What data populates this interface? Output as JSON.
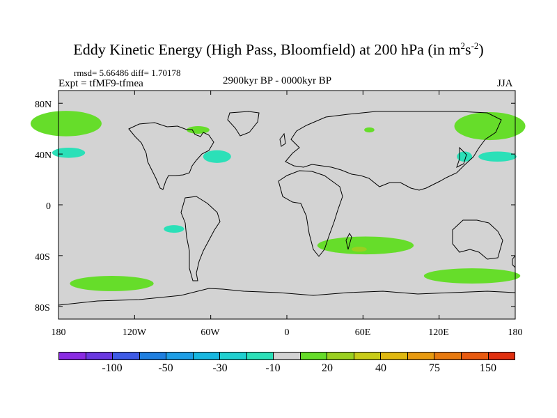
{
  "title": {
    "main": "Eddy Kinetic Energy (High Pass, Bloomfield) at 200 hPa (in m",
    "sup1": "2",
    "mid": "s",
    "sup2": "-2",
    "end": ")"
  },
  "stats": "rmsd= 5.66486 diff= 1.70178",
  "expt": "Expt = tfMF9-tfmea",
  "period": "2900kyr BP - 0000kyr BP",
  "season": "JJA",
  "y_ticks": [
    "80N",
    "40N",
    "0",
    "40S",
    "80S"
  ],
  "x_ticks": [
    "180",
    "120W",
    "60W",
    "0",
    "60E",
    "120E",
    "180"
  ],
  "colorbar": {
    "colors": [
      "#8a2be2",
      "#6a38e0",
      "#3f5be6",
      "#1f7fe0",
      "#1e9ee6",
      "#18b7e0",
      "#20d0d0",
      "#2be0b8",
      "#d3d3d3",
      "#66dd2a",
      "#9ad020",
      "#c8cc18",
      "#e0b810",
      "#e89a10",
      "#e87a10",
      "#e85a10",
      "#e03010"
    ],
    "labels": [
      "-100",
      "-50",
      "-30",
      "-10",
      "20",
      "40",
      "75",
      "150"
    ]
  },
  "map": {
    "lon_range": [
      -180,
      180
    ],
    "lat_range": [
      -90,
      90
    ],
    "background_color": "#d3d3d3",
    "anomaly_regions": [
      {
        "id": "n-pacific-west",
        "lon": -174,
        "lat": 64,
        "dlon": 28,
        "dlat": 10,
        "color": "#66dd2a"
      },
      {
        "id": "n-pacific-east",
        "lon": 160,
        "lat": 62,
        "dlon": 28,
        "dlat": 11,
        "color": "#66dd2a"
      },
      {
        "id": "hudson-bay",
        "lon": -70,
        "lat": 59,
        "dlon": 9,
        "dlat": 3,
        "color": "#66dd2a"
      },
      {
        "id": "n-atlantic",
        "lon": -55,
        "lat": 38,
        "dlon": 11,
        "dlat": 5,
        "color": "#2be0b8"
      },
      {
        "id": "nw-pacific-west",
        "lon": -172,
        "lat": 41,
        "dlon": 13,
        "dlat": 4,
        "color": "#2be0b8"
      },
      {
        "id": "japan",
        "lon": 140,
        "lat": 38,
        "dlon": 6,
        "dlat": 4,
        "color": "#2be0b8"
      },
      {
        "id": "nw-pacific-east",
        "lon": 166,
        "lat": 38,
        "dlon": 15,
        "dlat": 4,
        "color": "#2be0b8"
      },
      {
        "id": "caspian",
        "lon": 65,
        "lat": 59,
        "dlon": 4,
        "dlat": 2,
        "color": "#66dd2a"
      },
      {
        "id": "se-pacific",
        "lon": -89,
        "lat": -19,
        "dlon": 8,
        "dlat": 3,
        "color": "#2be0b8"
      },
      {
        "id": "s-indian",
        "lon": 62,
        "lat": -32,
        "dlon": 38,
        "dlat": 7,
        "color": "#66dd2a"
      },
      {
        "id": "s-indian-core",
        "lon": 57,
        "lat": -35,
        "dlon": 6,
        "dlat": 2,
        "color": "#9ad020"
      },
      {
        "id": "s-pacific",
        "lon": -138,
        "lat": -62,
        "dlon": 33,
        "dlat": 6,
        "color": "#66dd2a"
      },
      {
        "id": "s-australia",
        "lon": 146,
        "lat": -56,
        "dlon": 38,
        "dlat": 6,
        "color": "#66dd2a"
      }
    ]
  }
}
